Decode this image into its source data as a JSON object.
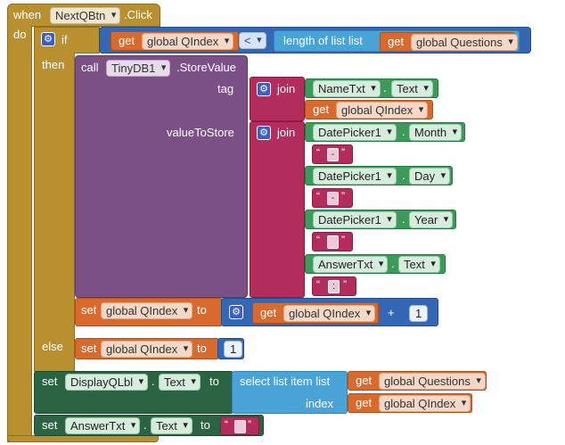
{
  "event": {
    "when": "when",
    "component": "NextQBtn",
    "event_name": ".Click",
    "do": "do"
  },
  "if_block": {
    "if": "if",
    "then": "then",
    "else": "else"
  },
  "condition": {
    "get": "get",
    "left_var": "global QIndex",
    "operator": "<",
    "length_label": "length of list  list",
    "get2": "get",
    "right_var": "global Questions"
  },
  "store": {
    "call": "call",
    "component": "TinyDB1",
    "method": ".StoreValue",
    "tag": "tag",
    "value_to_store": "valueToStore"
  },
  "tag_join": {
    "join": "join",
    "comp1": "NameTxt",
    "prop1": "Text",
    "get": "get",
    "var": "global QIndex"
  },
  "value_join": {
    "join": "join",
    "c1": "DatePicker1",
    "p1": "Month",
    "s1": "-",
    "c2": "DatePicker1",
    "p2": "Day",
    "s2": "-",
    "c3": "DatePicker1",
    "p3": "Year",
    "s3": "",
    "c4": "AnswerTxt",
    "p4": "Text",
    "s4": ":"
  },
  "set_then": {
    "set": "set",
    "var": "global QIndex",
    "to": "to",
    "get": "get",
    "get_var": "global QIndex",
    "op": "+",
    "num": "1"
  },
  "set_else": {
    "set": "set",
    "var": "global QIndex",
    "to": "to",
    "num": "1"
  },
  "set_label": {
    "set": "set",
    "comp": "DisplayQLbl",
    "prop": "Text",
    "to": "to",
    "select": "select list item  list",
    "get1": "get",
    "var1": "global Questions",
    "index": "index",
    "get2": "get",
    "var2": "global QIndex"
  },
  "set_answer": {
    "set": "set",
    "comp": "AnswerTxt",
    "prop": "Text",
    "to": "to",
    "str": ""
  },
  "colors": {
    "event": "#b8902f",
    "math": "#3468b4",
    "list": "#4aa3d6",
    "variable": "#d86a2e",
    "tinydb": "#7a5085",
    "text": "#b22d5b",
    "component": "#3c9b5a",
    "setter": "#2a6443"
  }
}
